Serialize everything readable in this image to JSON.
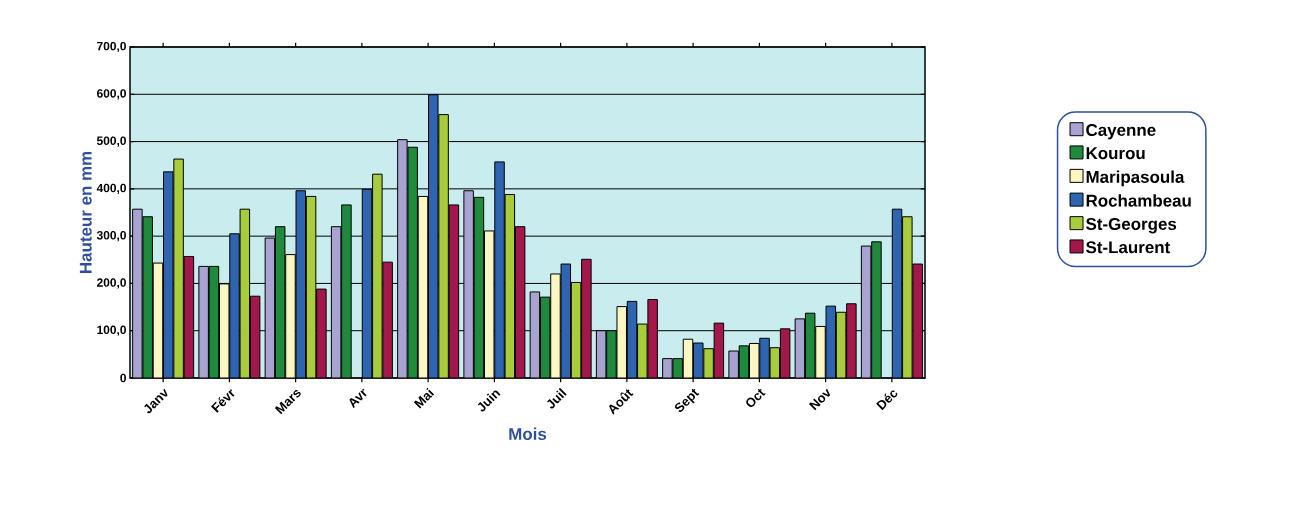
{
  "chart_data": {
    "type": "bar",
    "xlabel": "Mois",
    "ylabel": "Hauteur en mm",
    "categories": [
      "Janv",
      "Févr",
      "Mars",
      "Avr",
      "Mai",
      "Juin",
      "Juil",
      "Août",
      "Sept",
      "Oct",
      "Nov",
      "Déc"
    ],
    "series": [
      {
        "name": "Cayenne",
        "color": "#a9a3d1",
        "values": [
          357,
          236,
          296,
          320,
          504,
          396,
          182,
          100,
          41,
          57,
          125,
          279
        ]
      },
      {
        "name": "Kourou",
        "color": "#1f8a3c",
        "values": [
          341,
          236,
          320,
          366,
          488,
          382,
          171,
          100,
          41,
          68,
          137,
          288
        ]
      },
      {
        "name": "Maripasoula",
        "color": "#fbf6c2",
        "values": [
          243,
          199,
          261,
          null,
          384,
          311,
          220,
          151,
          82,
          73,
          109,
          null
        ]
      },
      {
        "name": "Rochambeau",
        "color": "#2e64b0",
        "values": [
          436,
          305,
          396,
          399,
          599,
          457,
          241,
          162,
          74,
          84,
          152,
          357
        ]
      },
      {
        "name": "St-Georges",
        "color": "#a8cc3c",
        "values": [
          463,
          357,
          384,
          431,
          557,
          388,
          202,
          114,
          62,
          64,
          139,
          341
        ]
      },
      {
        "name": "St-Laurent",
        "color": "#a3174a",
        "values": [
          257,
          173,
          188,
          245,
          366,
          320,
          251,
          166,
          116,
          104,
          157,
          241
        ]
      }
    ],
    "ylim": [
      0,
      700
    ],
    "yticks": [
      0,
      {
        "value": 100,
        "label": "100,0"
      },
      {
        "value": 200,
        "label": "200,0"
      },
      {
        "value": 300,
        "label": "300,0"
      },
      {
        "value": 400,
        "label": "400,0"
      },
      {
        "value": 500,
        "label": "500,0"
      },
      {
        "value": 600,
        "label": "600,0"
      },
      {
        "value": 700,
        "label": "700,0"
      }
    ],
    "grid": "y",
    "legend": "right"
  }
}
